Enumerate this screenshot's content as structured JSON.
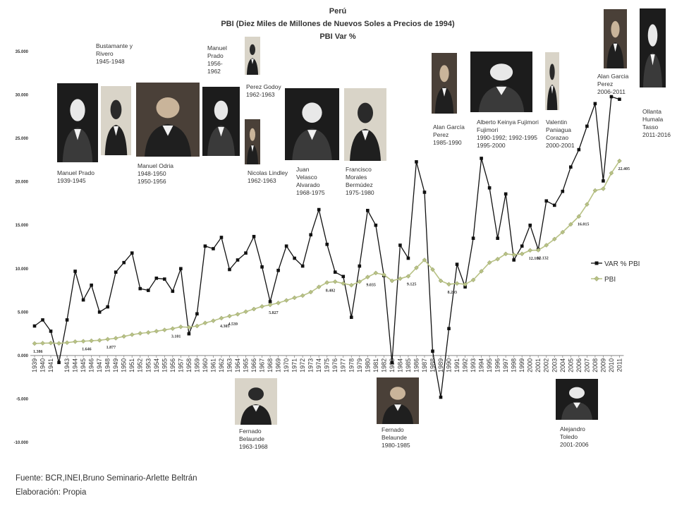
{
  "chart_data": {
    "type": "line",
    "title": "Perú",
    "subtitle": "PBI (Diez Miles de Millones de Nuevos Soles a Precios de 1994)",
    "subtitle2": "PBI Var %",
    "xlabel": "",
    "ylabel": "",
    "ylim": [
      -10,
      35
    ],
    "yticks": [
      "35.000",
      "30.000",
      "25.000",
      "20.000",
      "15.000",
      "10.000",
      "5.000",
      "0.000",
      "-5.000",
      "-10.000"
    ],
    "ytick_values": [
      35,
      30,
      25,
      20,
      15,
      10,
      5,
      0,
      -5,
      -10
    ],
    "grid": false,
    "legend_position": "right",
    "x": [
      "1939",
      "1940",
      "1941",
      "1942",
      "1943",
      "1944",
      "1945",
      "1946",
      "1947",
      "1948",
      "1949",
      "1950",
      "1951",
      "1952",
      "1953",
      "1954",
      "1955",
      "1956",
      "1957",
      "1958",
      "1959",
      "1960",
      "1961",
      "1962",
      "1963",
      "1964",
      "1965",
      "1966",
      "1967",
      "1968",
      "1969",
      "1970",
      "1971",
      "1972",
      "1973",
      "1974",
      "1975",
      "1976",
      "1977",
      "1978",
      "1979",
      "1980",
      "1981",
      "1982",
      "1983",
      "1984",
      "1985",
      "1986",
      "1987",
      "1988",
      "1989",
      "1990",
      "1991",
      "1992",
      "1993",
      "1994",
      "1995",
      "1996",
      "1997",
      "1998",
      "1999",
      "2000",
      "2001",
      "2002",
      "2003",
      "2004",
      "2005",
      "2006",
      "2007",
      "2008",
      "2009",
      "2010",
      "2011"
    ],
    "x_tick_years": [
      "1939",
      "1940",
      "1941",
      "1943",
      "1944",
      "1945",
      "1946",
      "1947",
      "1948",
      "1949",
      "1950",
      "1951",
      "1952",
      "1953",
      "1954",
      "1955",
      "1956",
      "1957",
      "1958",
      "1959",
      "1960",
      "1961",
      "1962",
      "1963",
      "1964",
      "1965",
      "1966",
      "1967",
      "1968",
      "1969",
      "1970",
      "1971",
      "1972",
      "1973",
      "1974",
      "1975",
      "1976",
      "1977",
      "1978",
      "1979",
      "1980",
      "1981",
      "1982",
      "1983",
      "1984",
      "1985",
      "1986",
      "1987",
      "1988",
      "1989",
      "1990",
      "1991",
      "1992",
      "1993",
      "1994",
      "1995",
      "1996",
      "1997",
      "1998",
      "1999",
      "2000",
      "2001",
      "2002",
      "2003",
      "2004",
      "2005",
      "2006",
      "2007",
      "2008",
      "2009",
      "2010",
      "2011"
    ],
    "series": [
      {
        "name": "VAR % PBI",
        "color": "#111111",
        "marker": "square",
        "values": [
          3.4,
          4.1,
          2.8,
          -0.8,
          4.1,
          9.7,
          6.4,
          8.1,
          5.0,
          5.6,
          9.6,
          10.7,
          11.8,
          7.7,
          7.5,
          8.9,
          8.8,
          7.4,
          10.0,
          2.5,
          4.8,
          12.6,
          12.3,
          13.6,
          9.9,
          11.0,
          11.8,
          13.7,
          10.2,
          6.2,
          9.8,
          12.6,
          11.2,
          10.3,
          13.9,
          16.8,
          12.8,
          9.6,
          9.1,
          4.4,
          10.3,
          16.7,
          15.0,
          9.2,
          -0.8,
          12.7,
          11.2,
          22.3,
          18.8,
          0.5,
          -4.8,
          3.1,
          10.5,
          7.9,
          13.5,
          22.7,
          19.3,
          13.5,
          18.6,
          11.0,
          12.6,
          15.0,
          12.2,
          17.8,
          17.3,
          18.9,
          21.7,
          23.7,
          26.4,
          29.0,
          20.1,
          29.8,
          29.5
        ]
      },
      {
        "name": "PBI",
        "color": "#b8c285",
        "marker": "diamond",
        "values": [
          1.386,
          1.42,
          1.44,
          1.4,
          1.48,
          1.6,
          1.646,
          1.7,
          1.75,
          1.877,
          1.99,
          2.2,
          2.4,
          2.55,
          2.65,
          2.8,
          2.95,
          3.101,
          3.3,
          3.25,
          3.4,
          3.75,
          4.0,
          4.305,
          4.539,
          4.75,
          5.05,
          5.35,
          5.65,
          5.827,
          6.05,
          6.35,
          6.65,
          6.9,
          7.3,
          7.9,
          8.402,
          8.5,
          8.3,
          8.1,
          8.5,
          9.035,
          9.5,
          9.3,
          8.6,
          8.85,
          9.125,
          10.1,
          11.0,
          9.9,
          8.6,
          8.203,
          8.3,
          8.2,
          8.7,
          9.7,
          10.7,
          11.1,
          11.7,
          11.6,
          11.7,
          12.106,
          12.132,
          12.7,
          13.4,
          14.2,
          15.1,
          16.015,
          17.4,
          19.0,
          19.2,
          21.0,
          22.405
        ]
      }
    ],
    "data_labels": [
      {
        "year": "1939",
        "text": "1.386"
      },
      {
        "year": "1945",
        "text": "1.646"
      },
      {
        "year": "1948",
        "text": "1.877"
      },
      {
        "year": "1956",
        "text": "3.101"
      },
      {
        "year": "1962",
        "text": "4.305"
      },
      {
        "year": "1963",
        "text": "4.539"
      },
      {
        "year": "1968",
        "text": "5.827"
      },
      {
        "year": "1975",
        "text": "8.402"
      },
      {
        "year": "1980",
        "text": "9.035"
      },
      {
        "year": "1985",
        "text": "9.125"
      },
      {
        "year": "1990",
        "text": "8.203"
      },
      {
        "year": "2000",
        "text": "12.106"
      },
      {
        "year": "2001",
        "text": "12.132"
      },
      {
        "year": "2006",
        "text": "16.015"
      },
      {
        "year": "2011",
        "text": "22.405"
      }
    ]
  },
  "presidents": [
    {
      "id": "prado-1",
      "lines": [
        "Manuel Prado",
        "1939-1945"
      ]
    },
    {
      "id": "bustamante",
      "lines": [
        "Bustamante y",
        "Rivero",
        "1945-1948"
      ]
    },
    {
      "id": "odria",
      "lines": [
        "Manuel Odria",
        "1948-1950",
        "1950-1956"
      ]
    },
    {
      "id": "prado-2",
      "lines": [
        "Manuel",
        "Prado",
        "1956-",
        "1962"
      ]
    },
    {
      "id": "godoy",
      "lines": [
        "Perez Godoy",
        "1962-1963"
      ]
    },
    {
      "id": "lindley",
      "lines": [
        "Nicolas Lindley",
        "1962-1963"
      ]
    },
    {
      "id": "velasco",
      "lines": [
        "Juan",
        "Velasco",
        "Alvarado",
        "1968-1975"
      ]
    },
    {
      "id": "morales",
      "lines": [
        "Francisco",
        "Morales",
        "Bermúdez",
        "1975-1980"
      ]
    },
    {
      "id": "garcia-1",
      "lines": [
        "Alan García",
        "Perez",
        "1985-1990"
      ]
    },
    {
      "id": "fujimori",
      "lines": [
        "Alberto Keinya Fujimori",
        "Fujimori",
        "1990-1992; 1992-1995",
        "1995-2000"
      ]
    },
    {
      "id": "paniagua",
      "lines": [
        "Valentin",
        "Paniagua",
        "Corazao",
        "2000-2001"
      ]
    },
    {
      "id": "garcia-2",
      "lines": [
        "Alan Garcia",
        "Perez",
        "2006-2011"
      ]
    },
    {
      "id": "humala",
      "lines": [
        "Ollanta",
        "Humala",
        "Tasso",
        "2011-2016"
      ]
    },
    {
      "id": "belaunde-1",
      "lines": [
        "Fernado",
        "Belaunde",
        "1963-1968"
      ]
    },
    {
      "id": "belaunde-2",
      "lines": [
        "Fernado",
        "Belaunde",
        "1980-1985"
      ]
    },
    {
      "id": "toledo",
      "lines": [
        "Alejandro",
        "Toledo",
        "2001-2006"
      ]
    }
  ],
  "footer": {
    "source": "Fuente: BCR,INEI,Bruno Seminario-Arlette Beltrán",
    "prepared": "Elaboración: Propia"
  }
}
